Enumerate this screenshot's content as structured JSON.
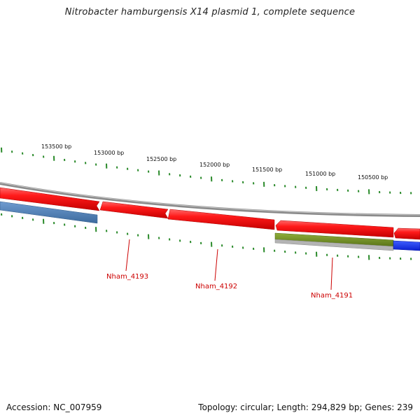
{
  "title": "Nitrobacter hamburgensis X14 plasmid 1, complete sequence",
  "footer": {
    "accession": "Accession: NC_007959",
    "topology": "Topology: circular; Length: 294,829 bp; Genes: 239"
  },
  "ruler": {
    "labels": [
      "153500 bp",
      "153000 bp",
      "152500 bp",
      "152000 bp",
      "151500 bp",
      "151000 bp",
      "150500 bp"
    ]
  },
  "genes": [
    {
      "label": "Nham_4193"
    },
    {
      "label": "Nham_4192"
    },
    {
      "label": "Nham_4191"
    }
  ],
  "colors": {
    "cds": "#ee0000",
    "backbone": "#888888",
    "tick": "#2a8a2a",
    "gene_label": "#cc0000",
    "steel_blue": "#4a7fb5",
    "blue": "#1a33ee",
    "olive": "#6e8c22",
    "gray_feature": "#aaaaaa"
  }
}
